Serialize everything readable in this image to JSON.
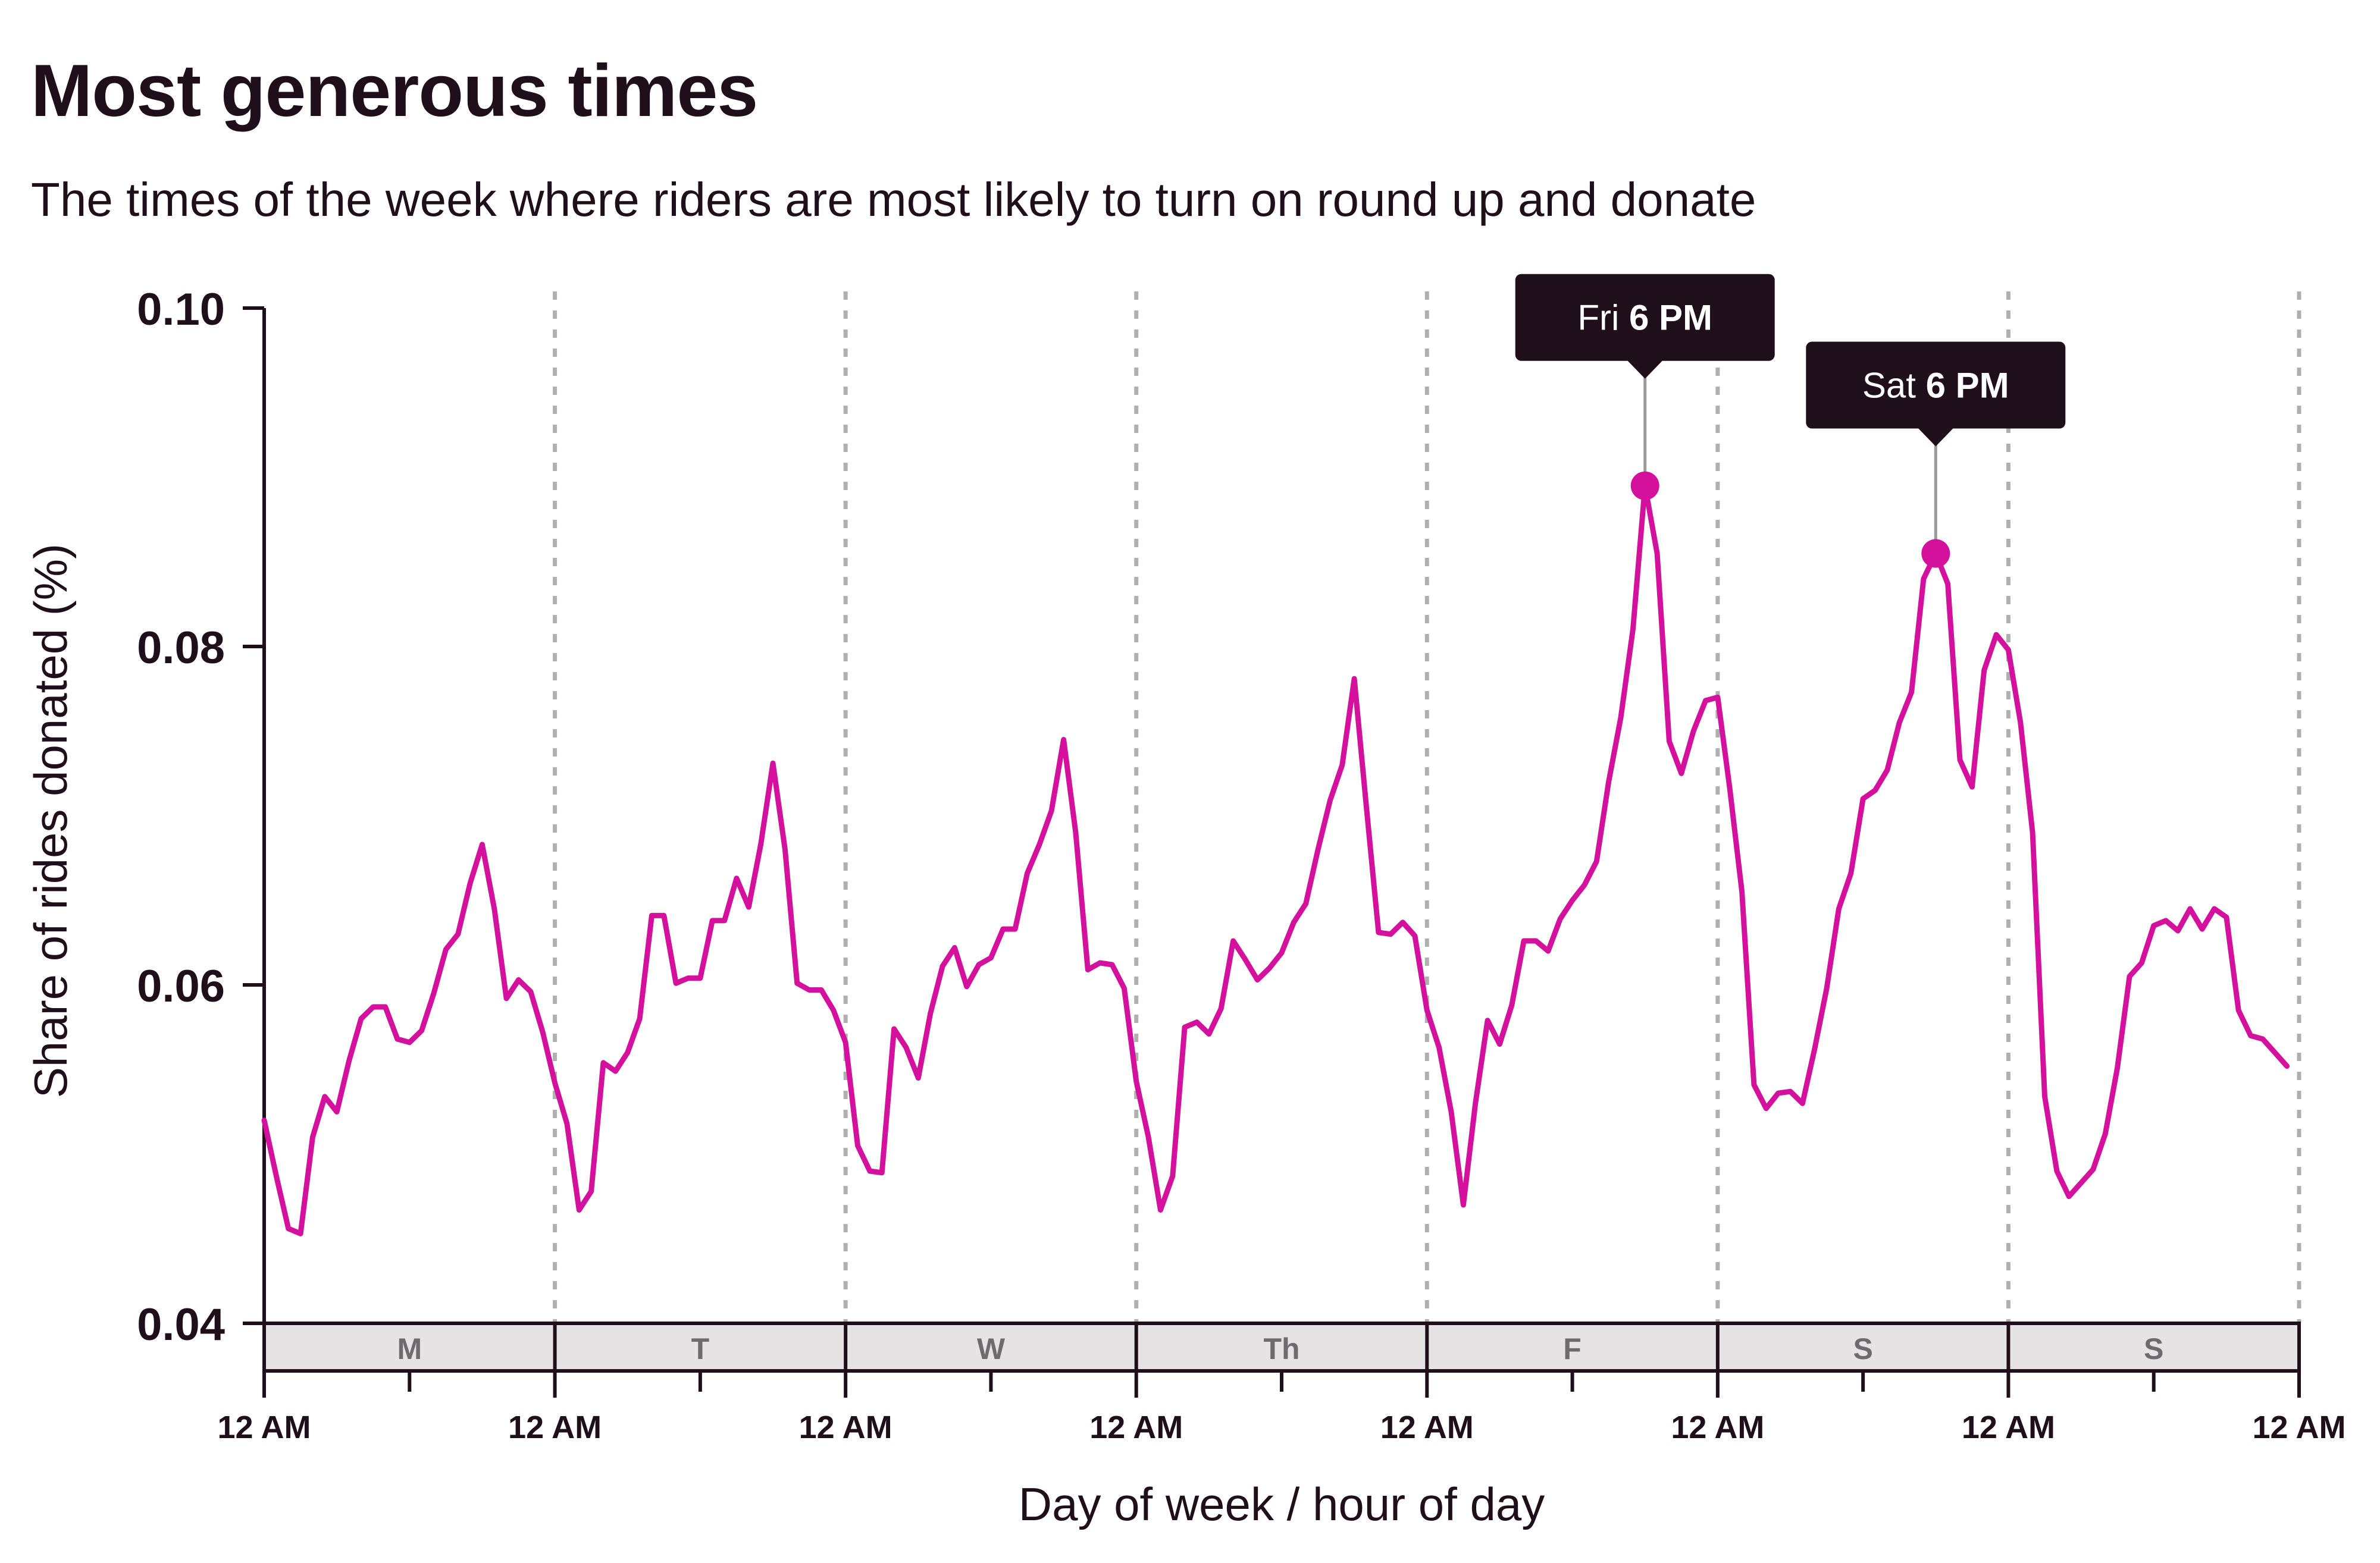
{
  "title": "Most generous times",
  "subtitle": "The times of the week where riders are most likely to turn on round up and donate",
  "colors": {
    "line": "#d4119c",
    "text": "#1f0f1b",
    "callout_bg": "#1f0f1b",
    "grid": "#b0b0b0",
    "day_band": "#e6e3e5"
  },
  "chart_data": {
    "type": "line",
    "title": "Most generous times",
    "subtitle": "The times of the week where riders are most likely to turn on round up and donate",
    "xlabel": "Day of week / hour of day",
    "ylabel": "Share of rides donated (%)",
    "ylim": [
      0.04,
      0.1
    ],
    "yticks": [
      0.04,
      0.06,
      0.08,
      0.1
    ],
    "ytick_labels": [
      "0.04",
      "0.06",
      "0.08",
      "0.10"
    ],
    "xlim": [
      0,
      168
    ],
    "x_unit": "hours since Monday 12 AM",
    "xticks": [
      0,
      24,
      48,
      72,
      96,
      120,
      144,
      168
    ],
    "xtick_labels": [
      "12 AM",
      "12 AM",
      "12 AM",
      "12 AM",
      "12 AM",
      "12 AM",
      "12 AM",
      "12 AM"
    ],
    "minor_xticks": [
      12,
      36,
      60,
      84,
      108,
      132,
      156
    ],
    "day_labels": [
      "M",
      "T",
      "W",
      "Th",
      "F",
      "S",
      "S"
    ],
    "day_gridlines": "dashed at every 12 AM",
    "series": [
      {
        "name": "Share of rides donated",
        "x": [
          0,
          1,
          2,
          3,
          4,
          5,
          6,
          7,
          8,
          9,
          10,
          11,
          12,
          13,
          14,
          15,
          16,
          17,
          18,
          19,
          20,
          21,
          22,
          23,
          24,
          25,
          26,
          27,
          28,
          29,
          30,
          31,
          32,
          33,
          34,
          35,
          36,
          37,
          38,
          39,
          40,
          41,
          42,
          43,
          44,
          45,
          46,
          47,
          48,
          49,
          50,
          51,
          52,
          53,
          54,
          55,
          56,
          57,
          58,
          59,
          60,
          61,
          62,
          63,
          64,
          65,
          66,
          67,
          68,
          69,
          70,
          71,
          72,
          73,
          74,
          75,
          76,
          77,
          78,
          79,
          80,
          81,
          82,
          83,
          84,
          85,
          86,
          87,
          88,
          89,
          90,
          91,
          92,
          93,
          94,
          95,
          96,
          97,
          98,
          99,
          100,
          101,
          102,
          103,
          104,
          105,
          106,
          107,
          108,
          109,
          110,
          111,
          112,
          113,
          114,
          115,
          116,
          117,
          118,
          119,
          120,
          121,
          122,
          123,
          124,
          125,
          126,
          127,
          128,
          129,
          130,
          131,
          132,
          133,
          134,
          135,
          136,
          137,
          138,
          139,
          140,
          141,
          142,
          143,
          144,
          145,
          146,
          147,
          148,
          149,
          150,
          151,
          152,
          153,
          154,
          155,
          156,
          157,
          158,
          159,
          160,
          161,
          162,
          163,
          164,
          165,
          166,
          167
        ],
        "values": [
          0.052,
          0.0487,
          0.0456,
          0.0453,
          0.051,
          0.0534,
          0.0525,
          0.0555,
          0.058,
          0.0587,
          0.0587,
          0.0568,
          0.0566,
          0.0573,
          0.0595,
          0.0621,
          0.063,
          0.066,
          0.0683,
          0.0645,
          0.0592,
          0.0603,
          0.0596,
          0.0572,
          0.0542,
          0.0518,
          0.0467,
          0.0478,
          0.0554,
          0.0549,
          0.056,
          0.058,
          0.0641,
          0.0641,
          0.0601,
          0.0604,
          0.0604,
          0.0638,
          0.0638,
          0.0663,
          0.0646,
          0.0683,
          0.0731,
          0.068,
          0.0601,
          0.0597,
          0.0597,
          0.0585,
          0.0566,
          0.0505,
          0.049,
          0.0489,
          0.0574,
          0.0563,
          0.0545,
          0.0583,
          0.0611,
          0.0622,
          0.0599,
          0.0612,
          0.0616,
          0.0633,
          0.0633,
          0.0666,
          0.0683,
          0.0703,
          0.0745,
          0.069,
          0.0609,
          0.0613,
          0.0612,
          0.0598,
          0.0543,
          0.051,
          0.0467,
          0.0487,
          0.0575,
          0.0578,
          0.0571,
          0.0586,
          0.0626,
          0.0615,
          0.0603,
          0.061,
          0.0619,
          0.0637,
          0.0648,
          0.068,
          0.0709,
          0.073,
          0.0781,
          0.0705,
          0.0631,
          0.063,
          0.0637,
          0.0629,
          0.0585,
          0.0563,
          0.0525,
          0.047,
          0.053,
          0.0579,
          0.0565,
          0.0588,
          0.0626,
          0.0626,
          0.062,
          0.0639,
          0.065,
          0.0659,
          0.0673,
          0.072,
          0.0758,
          0.081,
          0.0895,
          0.0855,
          0.0744,
          0.0725,
          0.075,
          0.0768,
          0.077,
          0.0716,
          0.0655,
          0.0541,
          0.0527,
          0.0536,
          0.0537,
          0.053,
          0.0562,
          0.0598,
          0.0645,
          0.0666,
          0.071,
          0.0715,
          0.0727,
          0.0755,
          0.0773,
          0.084,
          0.0855,
          0.0837,
          0.0733,
          0.0717,
          0.0786,
          0.0807,
          0.0798,
          0.0755,
          0.069,
          0.0534,
          0.049,
          0.0475,
          0.0483,
          0.0491,
          0.0512,
          0.0551,
          0.0605,
          0.0613,
          0.0635,
          0.0638,
          0.0632,
          0.0645,
          0.0633,
          0.0645,
          0.064,
          0.0585,
          0.057,
          0.0568,
          0.056,
          0.0552
        ]
      }
    ],
    "annotations": [
      {
        "x": 114,
        "y": 0.0895,
        "label_day": "Fri",
        "label_time": "6 PM"
      },
      {
        "x": 138,
        "y": 0.0855,
        "label_day": "Sat",
        "label_time": "6 PM"
      }
    ]
  }
}
